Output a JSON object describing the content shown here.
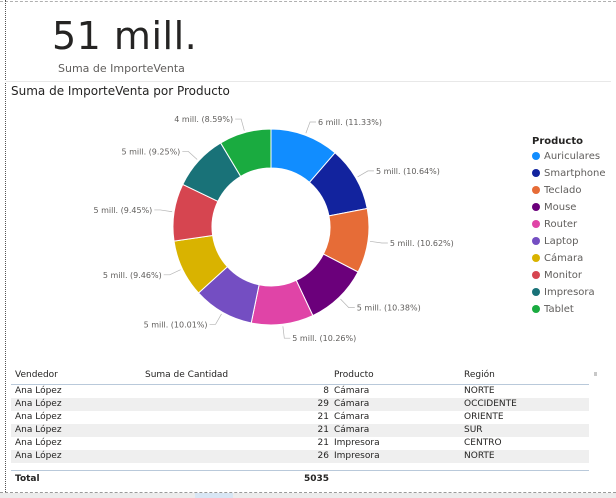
{
  "kpi": {
    "value": "51 mill.",
    "label": "Suma de ImporteVenta"
  },
  "chart": {
    "title": "Suma de ImporteVenta por Producto"
  },
  "chart_data": {
    "type": "pie",
    "title": "Suma de ImporteVenta por Producto",
    "legend_title": "Producto",
    "legend_position": "right",
    "slices": [
      {
        "name": "Auriculares",
        "percent": 11.33,
        "label": "6 mill. (11.33%)",
        "color": "#118DFF"
      },
      {
        "name": "Smartphone",
        "percent": 10.64,
        "label": "5 mill. (10.64%)",
        "color": "#12239E"
      },
      {
        "name": "Teclado",
        "percent": 10.62,
        "label": "5 mill. (10.62%)",
        "color": "#E66C37"
      },
      {
        "name": "Mouse",
        "percent": 10.38,
        "label": "5 mill. (10.38%)",
        "color": "#6B007B"
      },
      {
        "name": "Router",
        "percent": 10.26,
        "label": "5 mill. (10.26%)",
        "color": "#E044A7"
      },
      {
        "name": "Laptop",
        "percent": 10.01,
        "label": "5 mill. (10.01%)",
        "color": "#744EC2"
      },
      {
        "name": "Cámara",
        "percent": 9.46,
        "label": "5 mill. (9.46%)",
        "color": "#D9B300"
      },
      {
        "name": "Monitor",
        "percent": 9.45,
        "label": "5 mill. (9.45%)",
        "color": "#D64550"
      },
      {
        "name": "Impresora",
        "percent": 9.25,
        "label": "5 mill. (9.25%)",
        "color": "#197278"
      },
      {
        "name": "Tablet",
        "percent": 8.59,
        "label": "4 mill. (8.59%)",
        "color": "#1AAB40"
      }
    ]
  },
  "table": {
    "headers": {
      "vendedor": "Vendedor",
      "cantidad": "Suma de Cantidad",
      "producto": "Producto",
      "region": "Región"
    },
    "rows": [
      {
        "vendedor": "Ana López",
        "cantidad": "8",
        "producto": "Cámara",
        "region": "NORTE"
      },
      {
        "vendedor": "Ana López",
        "cantidad": "29",
        "producto": "Cámara",
        "region": "OCCIDENTE"
      },
      {
        "vendedor": "Ana López",
        "cantidad": "21",
        "producto": "Cámara",
        "region": "ORIENTE"
      },
      {
        "vendedor": "Ana López",
        "cantidad": "21",
        "producto": "Cámara",
        "region": "SUR"
      },
      {
        "vendedor": "Ana López",
        "cantidad": "21",
        "producto": "Impresora",
        "region": "CENTRO"
      },
      {
        "vendedor": "Ana López",
        "cantidad": "26",
        "producto": "Impresora",
        "region": "NORTE"
      }
    ],
    "total": {
      "label": "Total",
      "value": "5035"
    }
  }
}
